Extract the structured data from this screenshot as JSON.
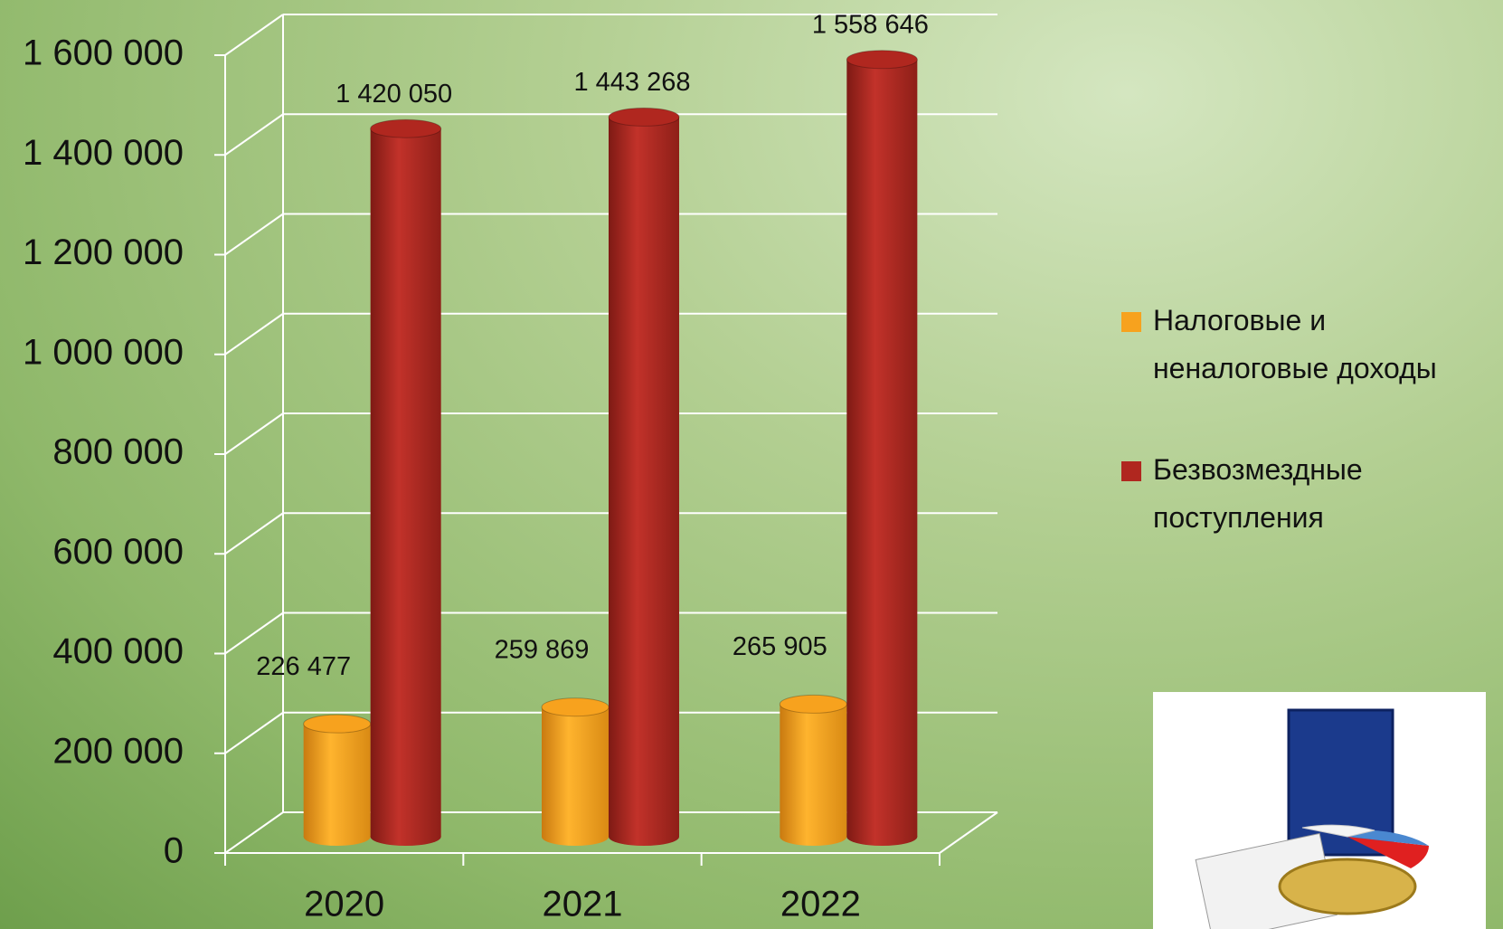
{
  "chart_data": {
    "type": "bar3d",
    "categories": [
      "2020",
      "2021",
      "2022"
    ],
    "series": [
      {
        "name": "Налоговые и неналоговые доходы",
        "color": "#f7a21e",
        "values": [
          226477,
          259869,
          265905
        ],
        "value_labels": [
          "226 477",
          "259 869",
          "265 905"
        ]
      },
      {
        "name": "Безвозмездные поступления",
        "color": "#b0271f",
        "values": [
          1420050,
          1443268,
          1558646
        ],
        "value_labels": [
          "1 420 050",
          "1 443 268",
          "1 558 646"
        ]
      }
    ],
    "ylim": [
      0,
      1600000
    ],
    "yticks": [
      0,
      {
        "value": 200000,
        "label": "200 000"
      },
      {
        "value": 400000,
        "label": "400 000"
      },
      {
        "value": 600000,
        "label": "600 000"
      },
      {
        "value": 800000,
        "label": "800 000"
      },
      {
        "value": 1000000,
        "label": "1 000 000"
      },
      {
        "value": 1200000,
        "label": "1 200 000"
      },
      {
        "value": 1400000,
        "label": "1 400 000"
      },
      {
        "value": 1600000,
        "label": "1 600 000"
      }
    ],
    "grid": true,
    "legend": "right"
  }
}
